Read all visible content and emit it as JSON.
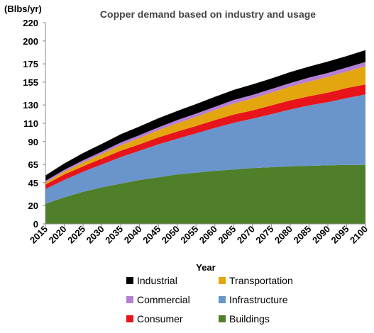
{
  "chart_data": {
    "type": "area",
    "stacked": true,
    "title": "Copper demand based on industry and usage",
    "ylabel": "(Blbs/yr)",
    "xlabel": "Year",
    "ylim": [
      0,
      220
    ],
    "yticks": [
      0,
      20,
      45,
      65,
      90,
      110,
      130,
      155,
      175,
      200,
      220
    ],
    "x": [
      2015,
      2020,
      2025,
      2030,
      2035,
      2040,
      2045,
      2050,
      2055,
      2060,
      2065,
      2070,
      2075,
      2080,
      2085,
      2090,
      2095,
      2100
    ],
    "legend_order": [
      "Industrial",
      "Transportation",
      "Commercial",
      "Infrastructure",
      "Consumer",
      "Buildings"
    ],
    "legend_placement": "bottom",
    "grid": false,
    "series": [
      {
        "name": "Buildings",
        "color": "#4f7f28",
        "values": [
          22,
          29,
          35,
          40,
          44,
          48,
          51,
          54,
          56,
          58,
          59.5,
          61,
          62,
          63,
          63.5,
          64,
          64.5,
          64.5
        ]
      },
      {
        "name": "Infrastructure",
        "color": "#6a95cc",
        "values": [
          16,
          19,
          22,
          25,
          29,
          32,
          36,
          39,
          43,
          47,
          51,
          54,
          58,
          62,
          66,
          69,
          73,
          77
        ]
      },
      {
        "name": "Consumer",
        "color": "#e8141b",
        "values": [
          5,
          6,
          6,
          6.5,
          7,
          7,
          7.5,
          8,
          8,
          8.5,
          9,
          9,
          9.5,
          10,
          10,
          10.5,
          11,
          11
        ]
      },
      {
        "name": "Transportation",
        "color": "#e3a60f",
        "values": [
          2,
          3,
          4,
          5,
          6,
          7,
          8,
          9,
          10,
          11,
          12,
          13,
          14,
          15,
          16,
          17,
          18,
          20
        ]
      },
      {
        "name": "Commercial",
        "color": "#b57fd6",
        "values": [
          2,
          2,
          2.5,
          2.5,
          3,
          3,
          3,
          3.5,
          3.5,
          3.5,
          4,
          4,
          4,
          4,
          4.5,
          4.5,
          4.5,
          4.5
        ]
      },
      {
        "name": "Industrial",
        "color": "#000000",
        "values": [
          6,
          7,
          8,
          8.5,
          9,
          9.5,
          10,
          10,
          10.5,
          11,
          11,
          11.5,
          11.5,
          12,
          12,
          12.5,
          12.5,
          13
        ]
      }
    ]
  }
}
